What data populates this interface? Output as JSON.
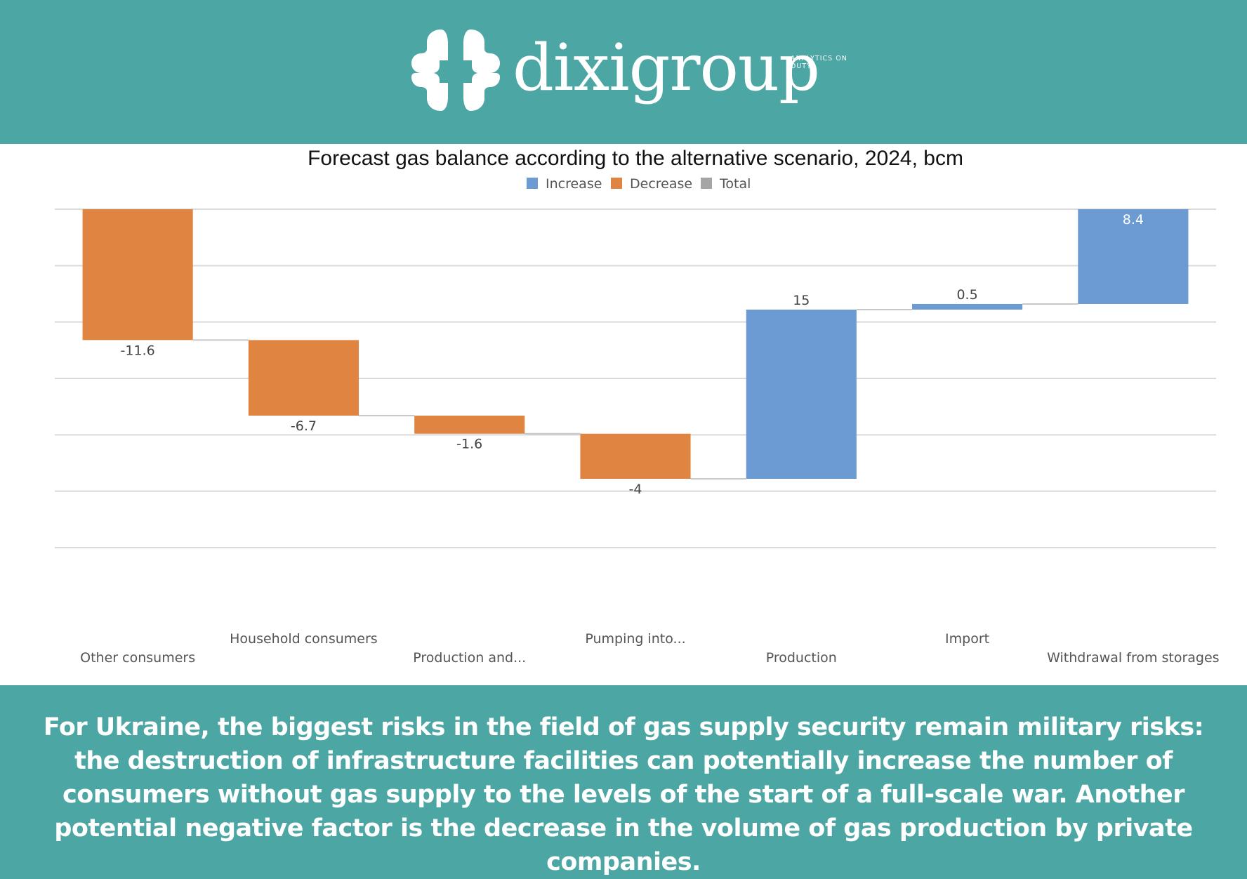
{
  "header": {
    "logo_name": "dixigroup",
    "logo_tagline": "ANALYTICS ON DUTY",
    "logo_icon": "dixigroup-logo-icon",
    "background_color": "#4ca6a3"
  },
  "chart_data": {
    "type": "waterfall",
    "title": "Forecast gas balance according to the alternative scenario, 2024, bcm",
    "legend": [
      {
        "name": "Increase",
        "color": "#6b9bd2"
      },
      {
        "name": "Decrease",
        "color": "#e08442"
      },
      {
        "name": "Total",
        "color": "#a5a5a5"
      }
    ],
    "legend_position": "top",
    "categories": [
      "Other consumers",
      "Household consumers",
      "Production and...",
      "Pumping into...",
      "Production",
      "Import",
      "Withdrawal from storages"
    ],
    "values": [
      -11.6,
      -6.7,
      -1.6,
      -4,
      15,
      0.5,
      8.4
    ],
    "value_labels": [
      "-11.6",
      "-6.7",
      "-1.6",
      "-4",
      "15",
      "0.5",
      "8.4"
    ],
    "ylim": [
      -30,
      0
    ],
    "grid": true,
    "xlabel": "",
    "ylabel": ""
  },
  "footer": {
    "text": "For Ukraine, the biggest risks in the field of gas supply security remain military risks: the destruction of infrastructure facilities can potentially increase the number of consumers without gas supply to the levels of the start of a full-scale war. Another potential negative factor is the decrease in the volume of gas production by private companies.",
    "background_color": "#4ca6a3"
  }
}
